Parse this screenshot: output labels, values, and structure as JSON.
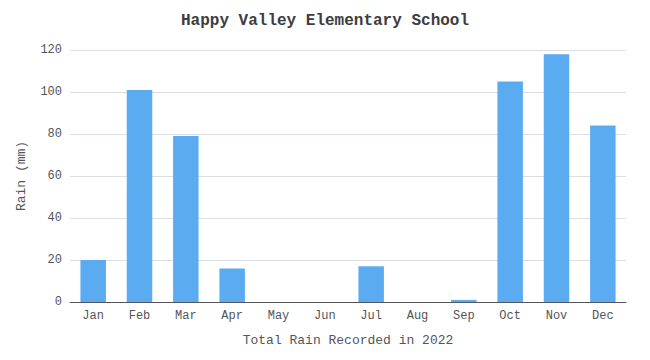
{
  "chart_data": {
    "type": "bar",
    "title": "Happy Valley Elementary School",
    "xlabel": "Total Rain Recorded in 2022",
    "ylabel": "Rain (mm)",
    "categories": [
      "Jan",
      "Feb",
      "Mar",
      "Apr",
      "May",
      "Jun",
      "Jul",
      "Aug",
      "Sep",
      "Oct",
      "Nov",
      "Dec"
    ],
    "values": [
      20,
      101,
      79,
      16,
      0,
      0,
      17,
      0,
      1,
      105,
      118,
      84
    ],
    "color": "#5aabf0",
    "ylim": [
      0,
      120
    ],
    "yticks": [
      0,
      20,
      40,
      60,
      80,
      100,
      120
    ],
    "grid": true
  }
}
